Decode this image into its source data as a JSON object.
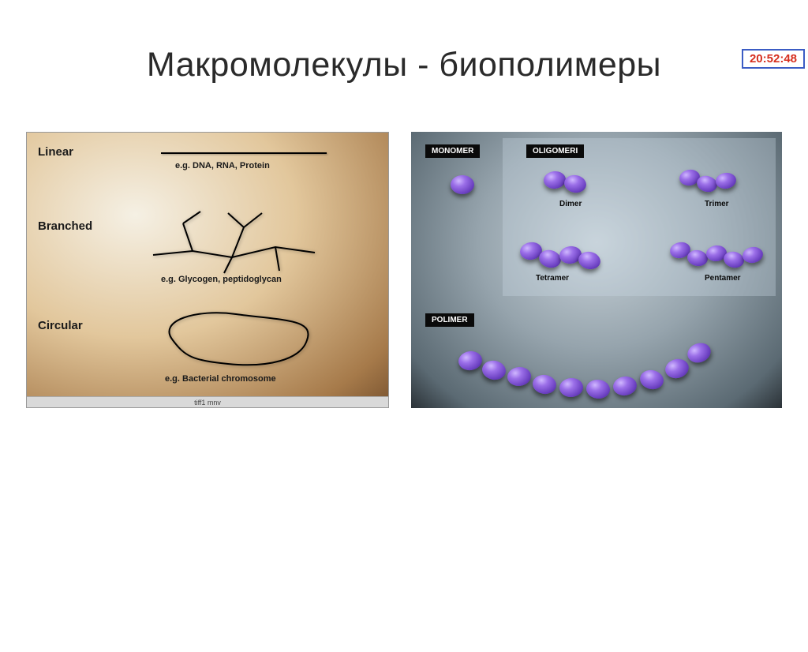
{
  "timestamp": "20:52:48",
  "title": "Макромолекулы - биополимеры",
  "leftPanel": {
    "footer": "tiff1 mnv",
    "bgGradient": [
      "#f5f0e4",
      "#e2c79c",
      "#a67a4a",
      "#7a5430"
    ],
    "lineColor": "#000000",
    "rows": {
      "linear": {
        "label": "Linear",
        "eg": "e.g. DNA, RNA, Protein"
      },
      "branched": {
        "label": "Branched",
        "eg": "e.g. Glycogen, peptidoglycan"
      },
      "circular": {
        "label": "Circular",
        "eg": "e.g. Bacterial chromosome"
      }
    }
  },
  "rightPanel": {
    "bgGradient": [
      "#c9d3d9",
      "#96a4ad",
      "#5b6a73",
      "#2b3237"
    ],
    "beadColor": "#7a4fd0",
    "beadHighlight": "#d0b8ff",
    "tags": {
      "monomer": "MONOMER",
      "oligomeri": "OLIGOMERI",
      "polimer": "POLIMER"
    },
    "labels": {
      "dimer": "Dimer",
      "trimer": "Trimer",
      "tetramer": "Tetramer",
      "pentamer": "Pentamer"
    },
    "groups": {
      "monomer": {
        "count": 1,
        "beads": [
          [
            50,
            55,
            30,
            24,
            0
          ]
        ]
      },
      "dimer": {
        "count": 2,
        "beads": [
          [
            168,
            50,
            28,
            22,
            -5
          ],
          [
            194,
            55,
            28,
            22,
            10
          ]
        ]
      },
      "trimer": {
        "count": 3,
        "beads": [
          [
            340,
            48,
            26,
            20,
            -10
          ],
          [
            362,
            56,
            26,
            20,
            15
          ],
          [
            386,
            52,
            26,
            20,
            -8
          ]
        ]
      },
      "tetramer": {
        "count": 4,
        "beads": [
          [
            138,
            140,
            28,
            22,
            -10
          ],
          [
            162,
            150,
            28,
            22,
            15
          ],
          [
            188,
            145,
            28,
            22,
            -8
          ],
          [
            212,
            152,
            28,
            22,
            12
          ]
        ]
      },
      "pentamer": {
        "count": 5,
        "beads": [
          [
            328,
            140,
            26,
            20,
            -12
          ],
          [
            350,
            150,
            26,
            20,
            10
          ],
          [
            374,
            144,
            26,
            20,
            -6
          ],
          [
            396,
            152,
            26,
            20,
            14
          ],
          [
            420,
            146,
            26,
            20,
            -10
          ]
        ]
      },
      "polimer": {
        "count": 10,
        "beads": [
          [
            60,
            278,
            30,
            24,
            -8
          ],
          [
            90,
            290,
            30,
            24,
            10
          ],
          [
            122,
            298,
            30,
            24,
            -6
          ],
          [
            154,
            308,
            30,
            24,
            8
          ],
          [
            188,
            312,
            30,
            24,
            -4
          ],
          [
            222,
            314,
            30,
            24,
            6
          ],
          [
            256,
            310,
            30,
            24,
            -8
          ],
          [
            290,
            302,
            30,
            24,
            12
          ],
          [
            322,
            288,
            30,
            24,
            -14
          ],
          [
            350,
            268,
            30,
            24,
            -20
          ]
        ]
      }
    }
  }
}
